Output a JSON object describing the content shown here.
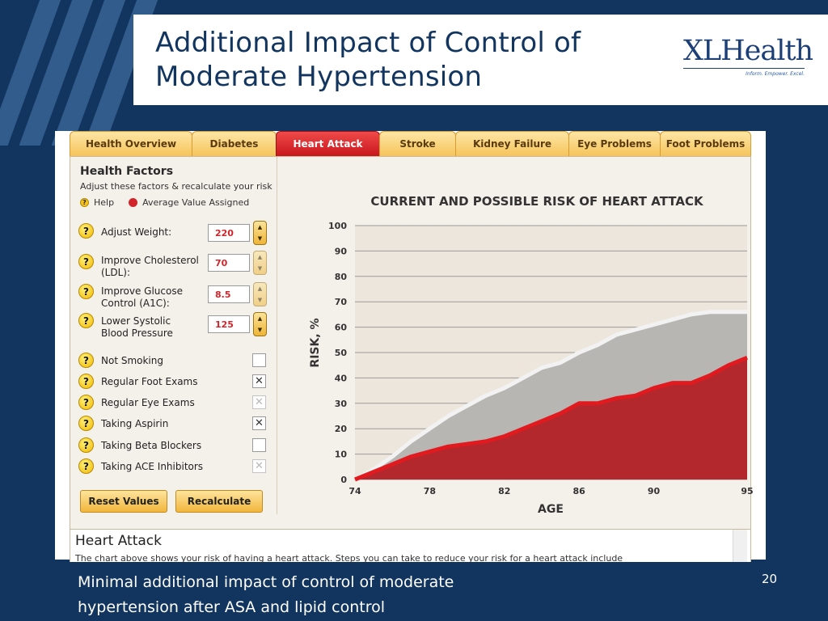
{
  "slide": {
    "title_line1": "Additional Impact of Control of",
    "title_line2": "Moderate Hypertension",
    "logo": "XLHealth",
    "logo_tagline": "Inform. Empower. Excel.",
    "caption_line1": "Minimal additional impact of control of moderate",
    "caption_line2": "hypertension after ASA and lipid control",
    "page_number": "20"
  },
  "tabs": [
    {
      "label": "Health Overview",
      "active": false
    },
    {
      "label": "Diabetes",
      "active": false
    },
    {
      "label": "Heart Attack",
      "active": true
    },
    {
      "label": "Stroke",
      "active": false
    },
    {
      "label": "Kidney Failure",
      "active": false
    },
    {
      "label": "Eye Problems",
      "active": false
    },
    {
      "label": "Foot Problems",
      "active": false
    }
  ],
  "panel": {
    "title": "Health Factors",
    "subtitle": "Adjust these factors & recalculate your risk",
    "legend_help": "Help",
    "legend_average": "Average Value Assigned",
    "inputs": [
      {
        "label_line1": "Adjust Weight:",
        "label_line2": "",
        "value": "220"
      },
      {
        "label_line1": "Improve Cholesterol",
        "label_line2": "(LDL):",
        "value": "70"
      },
      {
        "label_line1": "Improve Glucose",
        "label_line2": "Control (A1C):",
        "value": "8.5"
      },
      {
        "label_line1": "Lower Systolic",
        "label_line2": "Blood Pressure",
        "value": "125"
      }
    ],
    "checks": [
      {
        "label": "Not Smoking",
        "mark": "",
        "dim": false
      },
      {
        "label": "Regular Foot Exams",
        "mark": "✕",
        "dim": false
      },
      {
        "label": "Regular Eye Exams",
        "mark": "✕",
        "dim": true
      },
      {
        "label": "Taking Aspirin",
        "mark": "✕",
        "dim": false
      },
      {
        "label": "Taking Beta Blockers",
        "mark": "",
        "dim": false
      },
      {
        "label": "Taking ACE Inhibitors",
        "mark": "✕",
        "dim": true
      }
    ],
    "reset_label": "Reset Values",
    "recalc_label": "Recalculate",
    "help_glyph": "?"
  },
  "chart_data": {
    "type": "area",
    "title": "CURRENT AND POSSIBLE RISK OF HEART ATTACK",
    "xlabel": "AGE",
    "ylabel": "RISK, %",
    "xlim": [
      74,
      95
    ],
    "ylim": [
      0,
      100
    ],
    "x_ticks": [
      74,
      78,
      82,
      86,
      90,
      95
    ],
    "y_ticks": [
      0,
      10,
      20,
      30,
      40,
      50,
      60,
      70,
      80,
      90,
      100
    ],
    "grid": true,
    "colors": {
      "current": "#f2f2f2",
      "current_fill": "#b8b6b2",
      "possible": "#e01a1f",
      "possible_fill": "#b3282d",
      "background": "#ede6dc"
    },
    "x": [
      74,
      75,
      76,
      77,
      78,
      79,
      80,
      81,
      82,
      83,
      84,
      85,
      86,
      87,
      88,
      89,
      90,
      91,
      92,
      93,
      94,
      95
    ],
    "series": [
      {
        "key": "current",
        "values": [
          0,
          4,
          9,
          15,
          20,
          25,
          29,
          33,
          36,
          40,
          44,
          46,
          50,
          53,
          57,
          59,
          61,
          63,
          65,
          66,
          66,
          66
        ]
      },
      {
        "key": "possible",
        "values": [
          0,
          3,
          6,
          9,
          11,
          13,
          14,
          15,
          17,
          20,
          23,
          26,
          30,
          30,
          32,
          33,
          36,
          38,
          38,
          41,
          45,
          48
        ]
      }
    ]
  },
  "info": {
    "title": "Heart Attack",
    "text": "The chart above shows your risk of having a heart attack. Steps you can take to reduce your risk for a heart attack include"
  }
}
